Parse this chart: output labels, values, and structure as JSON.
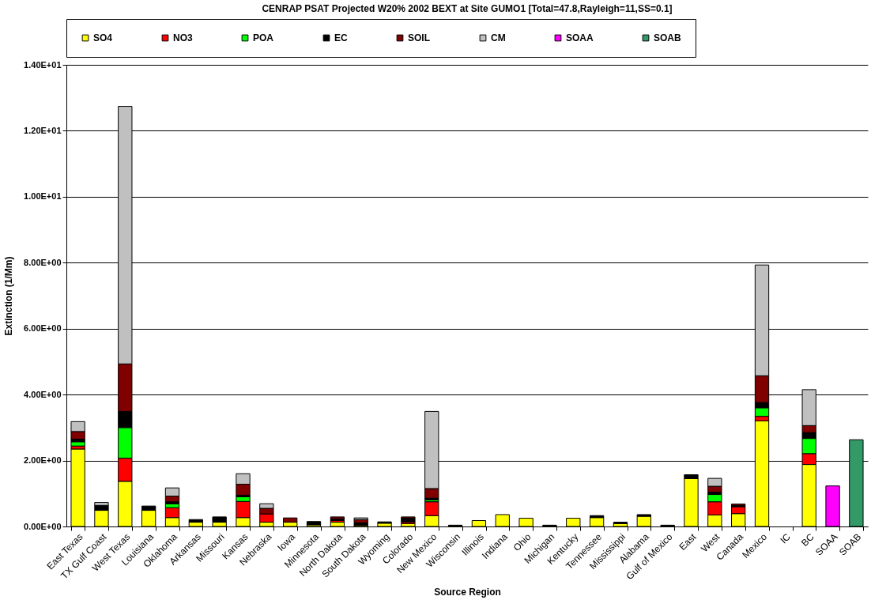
{
  "chart_data": {
    "type": "bar",
    "title": "CENRAP PSAT Projected W20% 2002 BEXT at Site GUMO1 [Total=47.8,Rayleigh=11,SS=0.1]",
    "xlabel": "Source Region",
    "ylabel": "Extinction (1/Mm)",
    "categories": [
      "East Texas",
      "TX Gulf Coast",
      "West Texas",
      "Louisiana",
      "Oklahoma",
      "Arkansas",
      "Missouri",
      "Kansas",
      "Nebraska",
      "Iowa",
      "Minnesota",
      "North Dakota",
      "South Dakota",
      "Wyoming",
      "Colorado",
      "New Mexico",
      "Wisconsin",
      "Illinois",
      "Indiana",
      "Ohio",
      "Michigan",
      "Kentucky",
      "Tennessee",
      "Mississippi",
      "Alabama",
      "Gulf of Mexico",
      "East",
      "West",
      "Canada",
      "Mexico",
      "IC",
      "BC",
      "SOAA",
      "SOAB"
    ],
    "stacked": true,
    "grid": "y",
    "legend": "top",
    "ylim": [
      0,
      14
    ],
    "yticks": [
      {
        "value": 0,
        "label": "0.00E+00"
      },
      {
        "value": 2,
        "label": "2.00E+00"
      },
      {
        "value": 4,
        "label": "4.00E+00"
      },
      {
        "value": 6,
        "label": "6.00E+00"
      },
      {
        "value": 8,
        "label": "8.00E+00"
      },
      {
        "value": 10,
        "label": "1.00E+01"
      },
      {
        "value": 12,
        "label": "1.20E+01"
      },
      {
        "value": 14,
        "label": "1.40E+01"
      }
    ],
    "series": [
      {
        "name": "SO4",
        "color": "#ffff00",
        "values": [
          2.35,
          0.49,
          1.37,
          0.49,
          0.27,
          0.13,
          0.13,
          0.27,
          0.13,
          0.13,
          0.05,
          0.13,
          0.03,
          0.1,
          0.09,
          0.33,
          0.02,
          0.18,
          0.36,
          0.25,
          0.02,
          0.25,
          0.27,
          0.09,
          0.31,
          0.02,
          1.45,
          0.35,
          0.39,
          3.2,
          0,
          1.88,
          0,
          0
        ]
      },
      {
        "name": "NO3",
        "color": "#ff0000",
        "values": [
          0.09,
          0,
          0.7,
          0,
          0.3,
          0,
          0,
          0.49,
          0.25,
          0,
          0,
          0.05,
          null,
          0,
          0.05,
          0.42,
          0,
          0,
          0,
          0,
          0,
          0,
          0,
          0,
          0,
          0,
          0,
          0.4,
          0.21,
          0.14,
          0,
          0.33,
          0,
          0
        ]
      },
      {
        "name": "POA",
        "color": "#00ff00",
        "values": [
          0.13,
          0,
          0.93,
          0,
          0.12,
          0,
          0,
          0.14,
          0,
          0,
          0,
          0,
          0,
          0,
          0,
          0.06,
          0,
          0,
          0,
          0,
          0,
          0,
          0,
          0,
          0,
          0,
          0,
          0.22,
          0,
          0.26,
          0,
          0.46,
          0,
          0
        ]
      },
      {
        "name": "EC",
        "color": "#000000",
        "values": [
          0.08,
          0.15,
          0.49,
          0.13,
          0.06,
          0.08,
          0.16,
          0.05,
          null,
          null,
          0.1,
          0.05,
          0.08,
          0.04,
          0.11,
          0.05,
          0.02,
          0,
          0,
          0,
          0.02,
          0,
          0.06,
          0.04,
          0.05,
          0.02,
          0.12,
          0.07,
          0.04,
          0.16,
          0,
          0.18,
          0,
          0
        ]
      },
      {
        "name": "SOIL",
        "color": "#800000",
        "values": [
          0.23,
          0,
          1.44,
          0,
          0.17,
          0,
          0,
          0.33,
          0.17,
          0.13,
          0,
          0.06,
          0.1,
          0,
          0.04,
          0.29,
          0,
          0,
          0,
          0,
          0,
          0,
          0,
          0,
          0,
          0,
          0,
          0.18,
          0.04,
          0.81,
          0,
          0.21,
          0,
          0
        ]
      },
      {
        "name": "CM",
        "color": "#c0c0c0",
        "values": [
          0.3,
          0.09,
          7.81,
          0,
          0.25,
          0,
          0,
          0.32,
          0.14,
          0,
          0,
          0,
          0.05,
          0,
          0,
          2.34,
          0,
          0,
          0,
          0,
          0,
          0,
          0,
          0,
          0,
          0,
          0,
          0.24,
          0,
          3.36,
          0,
          1.09,
          0,
          0
        ]
      },
      {
        "name": "SOAA",
        "color": "#ff00ff",
        "values": [
          0,
          0,
          0,
          0,
          0,
          0,
          0,
          0,
          0,
          0,
          0,
          0,
          0,
          0,
          0,
          0,
          0,
          0,
          0,
          0,
          0,
          0,
          0,
          0,
          0,
          0,
          0,
          0,
          0,
          0,
          0,
          0,
          1.23,
          0
        ]
      },
      {
        "name": "SOAB",
        "color": "#339966",
        "values": [
          0,
          0,
          0,
          0,
          0,
          0,
          0,
          0,
          0,
          0,
          0,
          0,
          0,
          0,
          0,
          0,
          0,
          0,
          0,
          0,
          0,
          0,
          0,
          0,
          0,
          0,
          0,
          0,
          0,
          0,
          0,
          0,
          0,
          2.63
        ]
      }
    ]
  }
}
